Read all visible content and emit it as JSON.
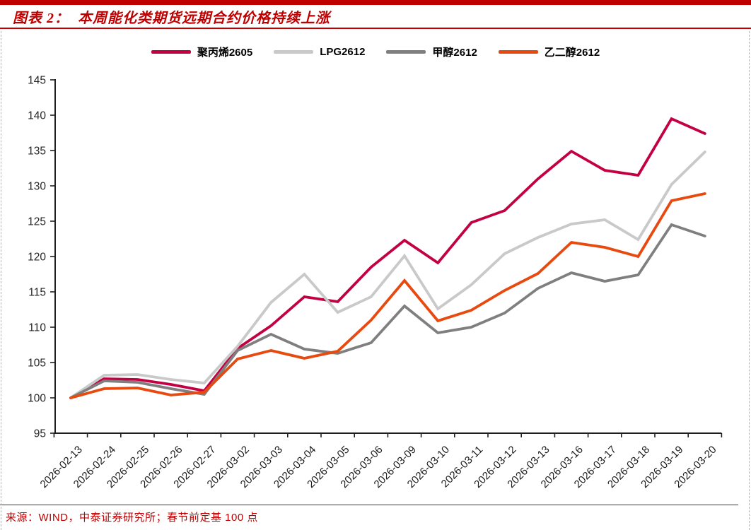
{
  "header": {
    "title": "图表 2：  本周能化类期货远期合约价格持续上涨",
    "accent_color": "#C00000"
  },
  "footer": {
    "source_text": "来源：WIND，中泰证券研究所；春节前定基 100 点"
  },
  "chart_data": {
    "type": "line",
    "title": "本周能化类期货远期合约价格持续上涨",
    "categories": [
      "2026-02-13",
      "2026-02-24",
      "2026-02-25",
      "2026-02-26",
      "2026-02-27",
      "2026-03-02",
      "2026-03-03",
      "2026-03-04",
      "2026-03-05",
      "2026-03-06",
      "2026-03-09",
      "2026-03-10",
      "2026-03-11",
      "2026-03-12",
      "2026-03-13",
      "2026-03-16",
      "2026-03-17",
      "2026-03-18",
      "2026-03-19",
      "2026-03-20"
    ],
    "series": [
      {
        "name": "聚丙烯2605",
        "color": "#C40045",
        "values": [
          100,
          102.7,
          102.6,
          101.9,
          101.0,
          107.0,
          110.2,
          114.3,
          113.6,
          118.5,
          122.3,
          119.1,
          124.8,
          126.5,
          131.0,
          134.9,
          132.2,
          131.5,
          139.5,
          137.4
        ]
      },
      {
        "name": "LPG2612",
        "color": "#C9C9C9",
        "values": [
          100,
          103.2,
          103.3,
          102.6,
          102.1,
          107.3,
          113.5,
          117.5,
          112.1,
          114.3,
          120.1,
          112.6,
          116.0,
          120.4,
          122.7,
          124.6,
          125.2,
          122.4,
          130.2,
          134.8
        ]
      },
      {
        "name": "甲醇2612",
        "color": "#7F7F7F",
        "values": [
          100,
          102.4,
          102.2,
          101.3,
          100.5,
          106.7,
          109.0,
          106.9,
          106.3,
          107.8,
          113.0,
          109.2,
          110.0,
          112.0,
          115.5,
          117.7,
          116.5,
          117.4,
          124.5,
          122.9
        ]
      },
      {
        "name": "乙二醇2612",
        "color": "#E8490F",
        "values": [
          100,
          101.3,
          101.4,
          100.4,
          100.8,
          105.5,
          106.7,
          105.6,
          106.6,
          111.0,
          116.6,
          110.9,
          112.4,
          115.2,
          117.6,
          122.0,
          121.3,
          120.0,
          127.9,
          128.9
        ]
      }
    ],
    "ylim": [
      95,
      145
    ],
    "y_tick_step": 5,
    "xlabel": "",
    "ylabel": "",
    "grid": false,
    "legend_position": "top",
    "baseline_note": "春节前定基 100 点"
  }
}
